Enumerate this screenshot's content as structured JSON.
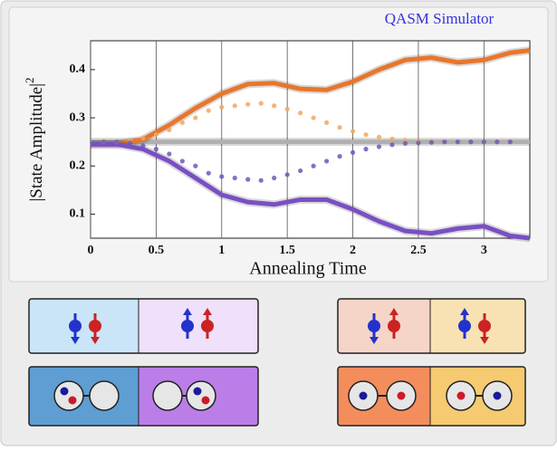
{
  "chart_data": {
    "type": "line",
    "title": "QASM Simulator",
    "xlabel": "Annealing Time",
    "ylabel": "|State Amplitude|",
    "ylabel_superscript": "2",
    "xlim": [
      0,
      3.35
    ],
    "ylim": [
      0.05,
      0.46
    ],
    "xticks": [
      0,
      0.5,
      1,
      1.5,
      2,
      2.5,
      3
    ],
    "yticks": [
      0.1,
      0.2,
      0.3,
      0.4
    ],
    "xgrid": true,
    "series": [
      {
        "style": "line",
        "color": "#b0b0b0",
        "x": [
          0,
          3.35
        ],
        "values": [
          0.25,
          0.25
        ]
      },
      {
        "style": "line",
        "color": "#e8762c",
        "x": [
          0,
          0.2,
          0.4,
          0.6,
          0.8,
          1.0,
          1.2,
          1.4,
          1.6,
          1.8,
          2.0,
          2.2,
          2.4,
          2.6,
          2.8,
          3.0,
          3.2,
          3.35
        ],
        "values": [
          0.245,
          0.245,
          0.255,
          0.285,
          0.32,
          0.35,
          0.37,
          0.372,
          0.36,
          0.358,
          0.375,
          0.4,
          0.42,
          0.425,
          0.415,
          0.42,
          0.435,
          0.44
        ]
      },
      {
        "style": "line",
        "color": "#7a4fc4",
        "x": [
          0,
          0.2,
          0.4,
          0.6,
          0.8,
          1.0,
          1.2,
          1.4,
          1.6,
          1.8,
          2.0,
          2.2,
          2.4,
          2.6,
          2.8,
          3.0,
          3.2,
          3.35
        ],
        "values": [
          0.245,
          0.245,
          0.235,
          0.21,
          0.175,
          0.14,
          0.125,
          0.12,
          0.13,
          0.13,
          0.11,
          0.085,
          0.065,
          0.06,
          0.07,
          0.075,
          0.055,
          0.05
        ]
      },
      {
        "style": "dots",
        "color": "#f0a860",
        "x": [
          0.1,
          0.2,
          0.3,
          0.4,
          0.5,
          0.6,
          0.7,
          0.8,
          0.9,
          1.0,
          1.1,
          1.2,
          1.3,
          1.4,
          1.5,
          1.6,
          1.7,
          1.8,
          1.9,
          2.0,
          2.1,
          2.2,
          2.3,
          2.4,
          2.5,
          2.6,
          2.7,
          2.8,
          2.9,
          3.0,
          3.1,
          3.2
        ],
        "values": [
          0.25,
          0.25,
          0.252,
          0.258,
          0.265,
          0.275,
          0.29,
          0.3,
          0.315,
          0.322,
          0.325,
          0.328,
          0.33,
          0.325,
          0.318,
          0.31,
          0.3,
          0.29,
          0.28,
          0.272,
          0.265,
          0.26,
          0.256,
          0.253,
          0.252,
          0.251,
          0.25,
          0.25,
          0.25,
          0.25,
          0.25,
          0.25
        ]
      },
      {
        "style": "dots",
        "color": "#6a5ab8",
        "x": [
          0.1,
          0.2,
          0.3,
          0.4,
          0.5,
          0.6,
          0.7,
          0.8,
          0.9,
          1.0,
          1.1,
          1.2,
          1.3,
          1.4,
          1.5,
          1.6,
          1.7,
          1.8,
          1.9,
          2.0,
          2.1,
          2.2,
          2.3,
          2.4,
          2.5,
          2.6,
          2.7,
          2.8,
          2.9,
          3.0,
          3.1,
          3.2
        ],
        "values": [
          0.25,
          0.25,
          0.248,
          0.242,
          0.235,
          0.225,
          0.21,
          0.2,
          0.185,
          0.178,
          0.175,
          0.172,
          0.17,
          0.175,
          0.182,
          0.19,
          0.2,
          0.21,
          0.22,
          0.228,
          0.235,
          0.24,
          0.244,
          0.247,
          0.248,
          0.249,
          0.25,
          0.25,
          0.25,
          0.25,
          0.25,
          0.25
        ]
      }
    ]
  }
}
